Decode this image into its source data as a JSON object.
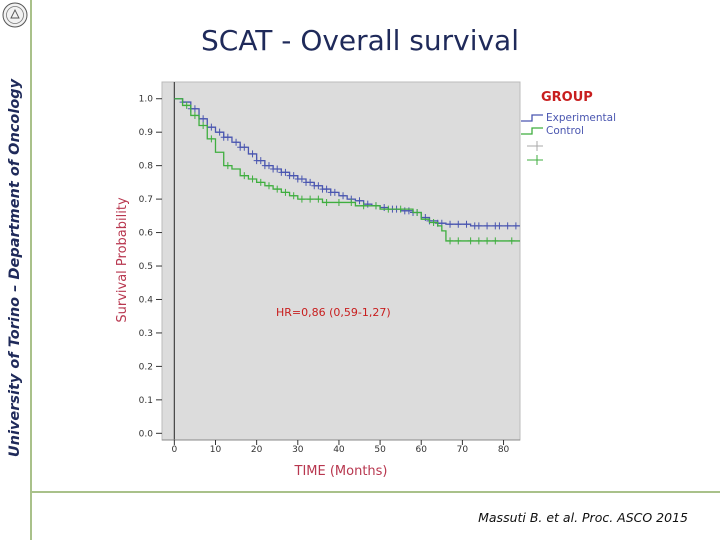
{
  "slide": {
    "title": "SCAT - Overall survival",
    "side_text": "University of Torino – Department of Oncology",
    "citation": "Massuti B. et al. Proc. ASCO 2015"
  },
  "colors": {
    "experimental": "#4a56b0",
    "control": "#3fae3f",
    "hr_text": "#c81e1e",
    "legend_title": "#c81e1e",
    "axis_title": "#b8374f",
    "plot_bg": "#dcdcdc"
  },
  "chart_data": {
    "type": "line",
    "subtype": "kaplan-meier",
    "xlabel": "TIME (Months)",
    "ylabel": "Survival Probability",
    "xlim": [
      -3,
      84
    ],
    "ylim": [
      -0.02,
      1.05
    ],
    "xticks": [
      0,
      10,
      20,
      30,
      40,
      50,
      60,
      70,
      80
    ],
    "yticks": [
      "0.0",
      "0.1",
      "0.2",
      "0.3",
      "0.4",
      "0.5",
      "0.6",
      "0.7",
      "0.8",
      "0.9",
      "1.0"
    ],
    "legend": {
      "title": "GROUP",
      "position": "top-right",
      "entries": [
        "Experimental",
        "Control"
      ]
    },
    "annotation": "HR=0,86 (0,59-1,27)",
    "series": [
      {
        "name": "Experimental",
        "steps": [
          [
            0,
            1.0
          ],
          [
            2,
            0.99
          ],
          [
            4,
            0.97
          ],
          [
            6,
            0.94
          ],
          [
            8,
            0.915
          ],
          [
            10,
            0.9
          ],
          [
            12,
            0.885
          ],
          [
            14,
            0.87
          ],
          [
            16,
            0.855
          ],
          [
            18,
            0.835
          ],
          [
            20,
            0.815
          ],
          [
            22,
            0.8
          ],
          [
            24,
            0.79
          ],
          [
            26,
            0.78
          ],
          [
            28,
            0.77
          ],
          [
            30,
            0.76
          ],
          [
            32,
            0.75
          ],
          [
            34,
            0.74
          ],
          [
            36,
            0.73
          ],
          [
            38,
            0.72
          ],
          [
            40,
            0.71
          ],
          [
            42,
            0.7
          ],
          [
            44,
            0.695
          ],
          [
            46,
            0.685
          ],
          [
            48,
            0.68
          ],
          [
            50,
            0.675
          ],
          [
            52,
            0.67
          ],
          [
            55,
            0.665
          ],
          [
            58,
            0.66
          ],
          [
            60,
            0.645
          ],
          [
            62,
            0.635
          ],
          [
            64,
            0.628
          ],
          [
            66,
            0.625
          ],
          [
            72,
            0.62
          ],
          [
            84,
            0.62
          ]
        ],
        "censor": [
          2,
          4,
          5,
          7,
          9,
          11,
          12,
          13,
          15,
          16,
          17,
          19,
          20,
          21,
          22,
          23,
          24,
          25,
          26,
          27,
          28,
          29,
          30,
          31,
          32,
          33,
          34,
          35,
          36,
          37,
          38,
          39,
          41,
          43,
          45,
          47,
          49,
          51,
          53,
          54,
          56,
          57,
          58,
          59,
          61,
          62,
          64,
          65,
          67,
          69,
          71,
          73,
          74,
          76,
          78,
          79,
          81,
          83
        ]
      },
      {
        "name": "Control",
        "steps": [
          [
            0,
            1.0
          ],
          [
            2,
            0.98
          ],
          [
            4,
            0.95
          ],
          [
            6,
            0.92
          ],
          [
            8,
            0.88
          ],
          [
            10,
            0.84
          ],
          [
            12,
            0.8
          ],
          [
            14,
            0.79
          ],
          [
            16,
            0.77
          ],
          [
            18,
            0.76
          ],
          [
            20,
            0.75
          ],
          [
            22,
            0.74
          ],
          [
            24,
            0.73
          ],
          [
            26,
            0.72
          ],
          [
            28,
            0.71
          ],
          [
            30,
            0.7
          ],
          [
            36,
            0.69
          ],
          [
            44,
            0.68
          ],
          [
            50,
            0.67
          ],
          [
            58,
            0.66
          ],
          [
            60,
            0.64
          ],
          [
            62,
            0.63
          ],
          [
            64,
            0.62
          ],
          [
            65,
            0.605
          ],
          [
            66,
            0.575
          ],
          [
            84,
            0.575
          ]
        ],
        "censor": [
          3,
          5,
          7,
          9,
          13,
          17,
          19,
          21,
          23,
          25,
          27,
          29,
          31,
          33,
          35,
          37,
          40,
          43,
          46,
          49,
          52,
          55,
          59,
          63,
          67,
          69,
          72,
          74,
          76,
          78,
          82
        ]
      }
    ]
  }
}
